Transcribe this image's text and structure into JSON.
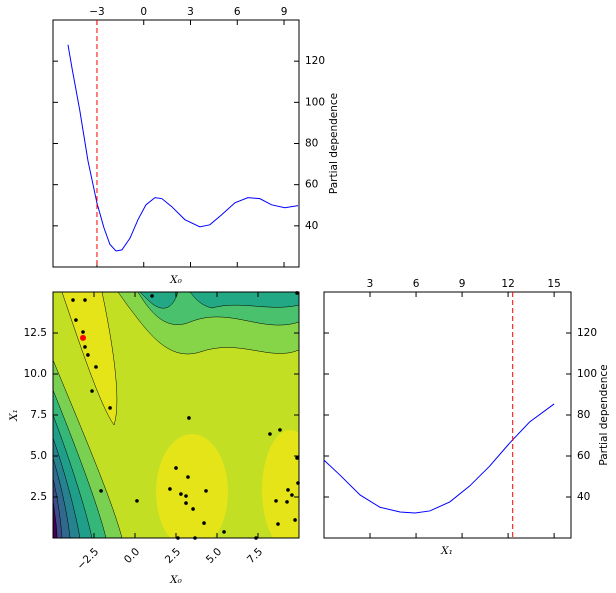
{
  "chart_data": [
    {
      "type": "line",
      "xlabel": "X₀",
      "ylabel": "Partial dependence",
      "color": "#0000ff",
      "x": [
        -4.86,
        -4.6,
        -4.1,
        -3.58,
        -3,
        -2.55,
        -2.17,
        -1.78,
        -1.4,
        -0.88,
        -0.37,
        0.14,
        0.72,
        1.17,
        1.8,
        2.64,
        3.6,
        4.24,
        5.0,
        5.85,
        6.68,
        7.45,
        8.2,
        9.05,
        9.9
      ],
      "values": [
        128,
        116.6,
        96,
        71.7,
        51,
        39,
        31,
        27.8,
        28.3,
        34,
        43,
        50.2,
        53.7,
        53.2,
        49.3,
        43,
        39.5,
        40.5,
        45.4,
        51.2,
        53.7,
        53.2,
        50.2,
        48.8,
        49.8
      ],
      "vline": -3,
      "vline_color": "#ff0000",
      "xlim": [
        -5.82,
        9.96
      ],
      "ylim": [
        20,
        140
      ],
      "xticks": [
        {
          "value": -3,
          "label": "−3"
        },
        0,
        3,
        6,
        9
      ],
      "yticks": [
        40,
        60,
        80,
        100,
        120
      ]
    },
    {
      "type": "scatter",
      "xlabel": "X₀",
      "ylabel": "X₁",
      "series": [
        {
          "color": "#000000",
          "x": [
            -3.78,
            -3.05,
            -3.6,
            -3.17,
            -3.05,
            -2.87,
            -2.38,
            -2.62,
            -1.52,
            -2.07,
            0.12,
            1.04,
            2.5,
            2.13,
            2.8,
            3.11,
            3.23,
            3.11,
            3.54,
            4.33,
            4.21,
            5.43,
            2.62,
            3.66,
            7.38,
            3.29,
            8.23,
            8.84,
            9.88,
            9.94,
            8.6,
            9.33,
            9.57,
            9.27,
            9.76,
            8.72,
            9.88
          ],
          "values": [
            14.51,
            14.51,
            13.29,
            12.56,
            11.65,
            11.16,
            10.43,
            8.96,
            7.93,
            2.87,
            2.26,
            14.76,
            4.27,
            2.99,
            2.68,
            2.56,
            3.72,
            2.13,
            1.77,
            2.87,
            0.91,
            0.37,
            0.0,
            0.0,
            0.0,
            7.32,
            6.34,
            6.59,
            4.88,
            3.35,
            2.26,
            2.93,
            2.62,
            2.2,
            1.1,
            0.85,
            14.94
          ]
        },
        {
          "color": "#ff0000",
          "x": [
            -3.17
          ],
          "values": [
            12.2
          ]
        }
      ],
      "xlim": [
        -5,
        10
      ],
      "ylim": [
        0,
        15
      ],
      "xticks": [
        {
          "value": -2.5,
          "label": "−2.5"
        },
        {
          "value": 0,
          "label": "0.0"
        },
        2.5,
        {
          "value": 5,
          "label": "5.0"
        },
        7.5
      ],
      "yticks": [
        2.5,
        {
          "value": 5,
          "label": "5.0"
        },
        7.5,
        {
          "value": 10,
          "label": "10.0"
        },
        12.5
      ]
    },
    {
      "type": "line",
      "xlabel": "X₁",
      "ylabel": "Partial dependence",
      "color": "#0000ff",
      "x": [
        0,
        1.04,
        2.35,
        3.65,
        4.96,
        5.93,
        6.9,
        8.2,
        9.5,
        10.8,
        12.1,
        13.4,
        15
      ],
      "values": [
        58,
        50.7,
        41,
        35,
        32.7,
        32.2,
        33.2,
        37.6,
        45.4,
        55.1,
        66.3,
        76.6,
        85.4
      ],
      "vline": 12.3,
      "vline_color": "#ff0000",
      "xlim": [
        0,
        16.1
      ],
      "ylim": [
        20,
        140
      ],
      "xticks": [
        3,
        6,
        9,
        12,
        15
      ],
      "yticks": [
        40,
        60,
        80,
        100,
        120
      ]
    }
  ]
}
